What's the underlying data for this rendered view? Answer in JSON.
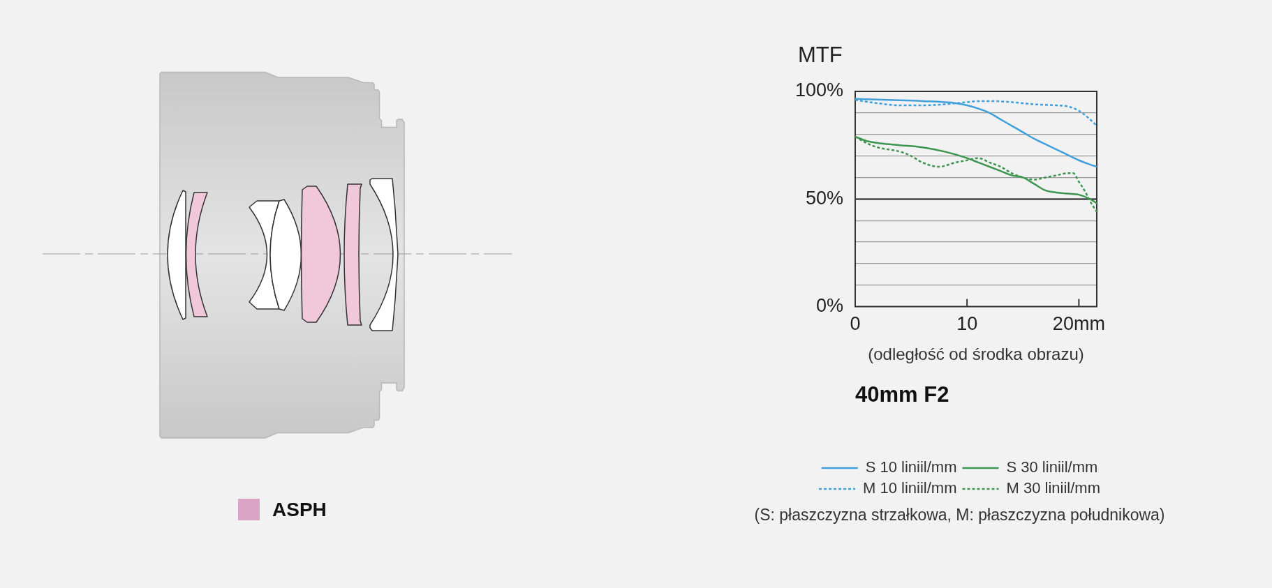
{
  "chart_data": {
    "type": "line",
    "title": "40mm F2",
    "xlabel": "(odległość od środka obrazu)",
    "ylabel": "MTF",
    "xlim": [
      0,
      21.6
    ],
    "xticks": [
      0,
      10,
      {
        "value": 20,
        "label": "20mm"
      }
    ],
    "ylim": [
      0,
      100
    ],
    "yticks": [
      {
        "value": 0,
        "label": "0%"
      },
      {
        "value": 10,
        "label": null
      },
      {
        "value": 20,
        "label": null
      },
      {
        "value": 30,
        "label": null
      },
      {
        "value": 40,
        "label": null
      },
      {
        "value": 50,
        "label": "50%"
      },
      {
        "value": 60,
        "label": null
      },
      {
        "value": 70,
        "label": null
      },
      {
        "value": 80,
        "label": null
      },
      {
        "value": 90,
        "label": null
      },
      {
        "value": 100,
        "label": "100%"
      }
    ],
    "grid": "y",
    "legend": "bottom",
    "marker": "none",
    "ref_lines": [
      {
        "axis": "y",
        "value": 50,
        "color": "#000000"
      }
    ],
    "annotations": [
      "ASPH",
      "(S: płaszczyzna strzałkowa, M: płaszczyzna południkowa)"
    ],
    "series": [
      {
        "name": "S 10 liniil/mm",
        "color": "#40a0dc",
        "line_style": "solid",
        "x": [
          0,
          3,
          6,
          9,
          10,
          11,
          12,
          13,
          14,
          15,
          16,
          17,
          18,
          19,
          20,
          21,
          21.6
        ],
        "values": [
          96.5,
          96,
          95.5,
          94.5,
          93.5,
          92,
          90,
          87,
          84,
          81,
          78,
          75.5,
          73,
          70.5,
          68,
          66,
          65
        ]
      },
      {
        "name": "S 30 liniil/mm",
        "color": "#3c9650",
        "line_style": "solid",
        "x": [
          0,
          1,
          2,
          4,
          6,
          8,
          10,
          11,
          12,
          13,
          14,
          15,
          16,
          17,
          18,
          19,
          20,
          21,
          21.6
        ],
        "values": [
          79,
          77,
          76,
          75,
          74,
          72,
          69,
          67,
          65,
          63,
          61,
          60,
          57,
          54,
          53,
          52.5,
          52,
          50,
          48
        ]
      },
      {
        "name": "M 10 liniil/mm",
        "color": "#40a0dc",
        "line_style": "dashed",
        "x": [
          0,
          2,
          4,
          6,
          8,
          9,
          10,
          11,
          12,
          14,
          16,
          18,
          19,
          20,
          21,
          21.6
        ],
        "values": [
          96,
          94.5,
          93.5,
          93.5,
          94,
          94.5,
          95,
          95.5,
          95.5,
          95,
          94,
          93.5,
          93,
          91,
          87,
          84
        ]
      },
      {
        "name": "M 30 liniil/mm",
        "color": "#3c9650",
        "line_style": "dashed",
        "x": [
          0,
          1,
          2,
          4,
          5,
          6,
          7.5,
          9,
          10,
          11,
          12,
          13,
          14,
          15,
          16,
          17,
          18,
          19,
          19.5,
          20,
          20.5,
          21,
          21.6
        ],
        "values": [
          79,
          76,
          74,
          72,
          70,
          67,
          65,
          67,
          68,
          69,
          67,
          65,
          62,
          60,
          59,
          60,
          61,
          62,
          62,
          58,
          54,
          49,
          44
        ]
      }
    ]
  }
}
